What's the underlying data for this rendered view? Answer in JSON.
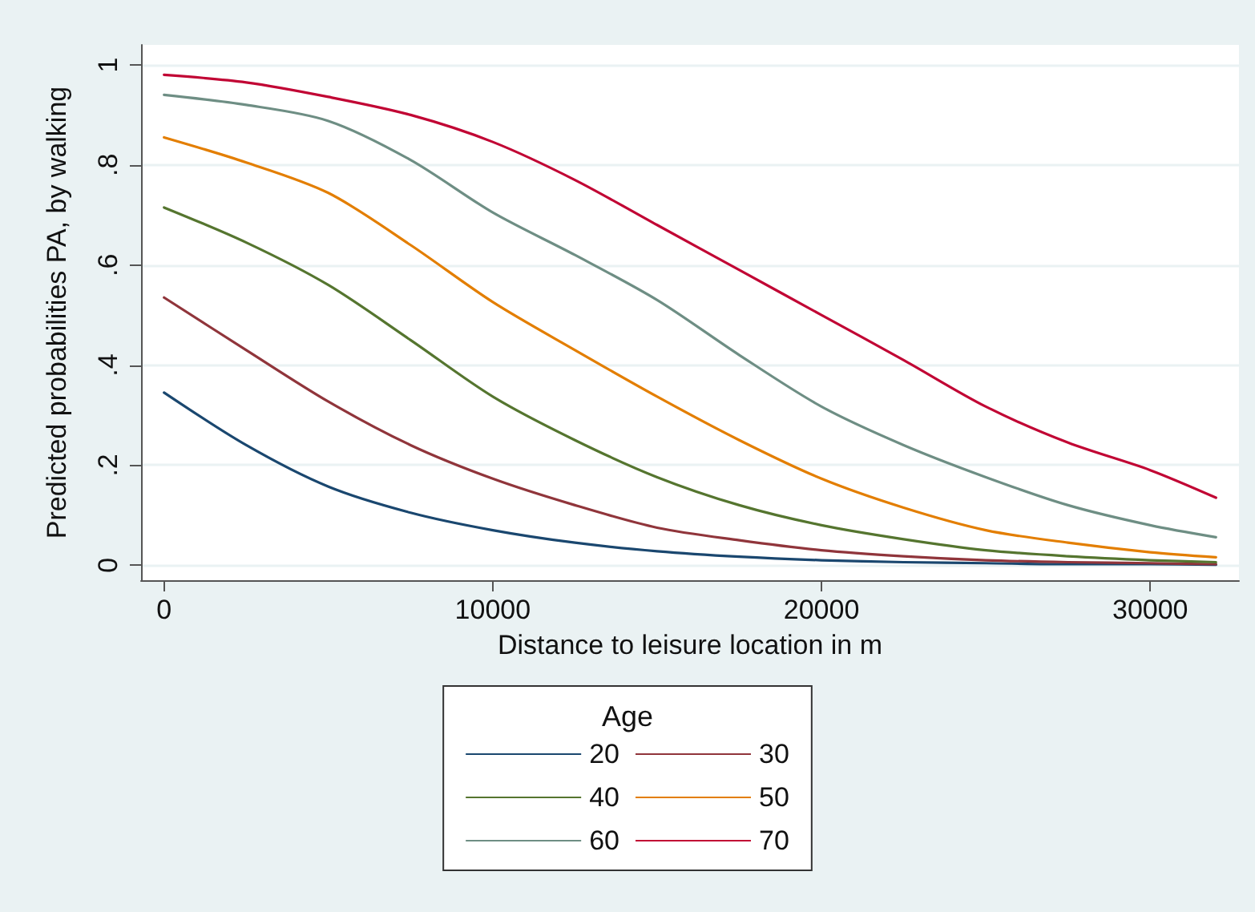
{
  "chart_data": {
    "type": "line",
    "xlabel": "Distance to leisure location in m",
    "ylabel": "Predicted probabilities PA, by walking",
    "legend_title": "Age",
    "legend": "bottom",
    "grid": "y",
    "marker": "none",
    "line_style": "solid",
    "x": [
      0,
      2500,
      5000,
      7500,
      10000,
      12500,
      15000,
      17500,
      20000,
      22500,
      25000,
      27500,
      30000,
      32000
    ],
    "xlim": [
      -700,
      32700
    ],
    "xticks": [
      0,
      10000,
      20000,
      30000
    ],
    "ylim": [
      -0.03,
      1.04
    ],
    "yticks": [
      {
        "value": 0,
        "label": "0"
      },
      {
        "value": 0.2,
        "label": ".2"
      },
      {
        "value": 0.4,
        "label": ".4"
      },
      {
        "value": 0.6,
        "label": ".6"
      },
      {
        "value": 0.8,
        "label": ".8"
      },
      {
        "value": 1,
        "label": "1"
      }
    ],
    "series": [
      {
        "name": "20",
        "color": "#1a476f",
        "values": [
          0.345,
          0.24,
          0.157,
          0.105,
          0.07,
          0.045,
          0.028,
          0.017,
          0.01,
          0.006,
          0.004,
          0.002,
          0.002,
          0.001
        ]
      },
      {
        "name": "30",
        "color": "#90353b",
        "values": [
          0.535,
          0.43,
          0.327,
          0.24,
          0.173,
          0.12,
          0.075,
          0.05,
          0.03,
          0.018,
          0.01,
          0.006,
          0.004,
          0.002
        ]
      },
      {
        "name": "40",
        "color": "#55752f",
        "values": [
          0.715,
          0.645,
          0.56,
          0.45,
          0.337,
          0.25,
          0.176,
          0.12,
          0.08,
          0.052,
          0.03,
          0.018,
          0.01,
          0.006
        ]
      },
      {
        "name": "50",
        "color": "#e37e00",
        "values": [
          0.855,
          0.805,
          0.744,
          0.64,
          0.526,
          0.43,
          0.337,
          0.25,
          0.173,
          0.115,
          0.07,
          0.045,
          0.026,
          0.016
        ]
      },
      {
        "name": "60",
        "color": "#6e8e84",
        "values": [
          0.94,
          0.92,
          0.888,
          0.81,
          0.705,
          0.62,
          0.53,
          0.42,
          0.317,
          0.24,
          0.176,
          0.12,
          0.08,
          0.056
        ]
      },
      {
        "name": "70",
        "color": "#c10534",
        "values": [
          0.98,
          0.965,
          0.936,
          0.9,
          0.846,
          0.77,
          0.68,
          0.59,
          0.5,
          0.41,
          0.317,
          0.245,
          0.19,
          0.135
        ]
      }
    ]
  }
}
